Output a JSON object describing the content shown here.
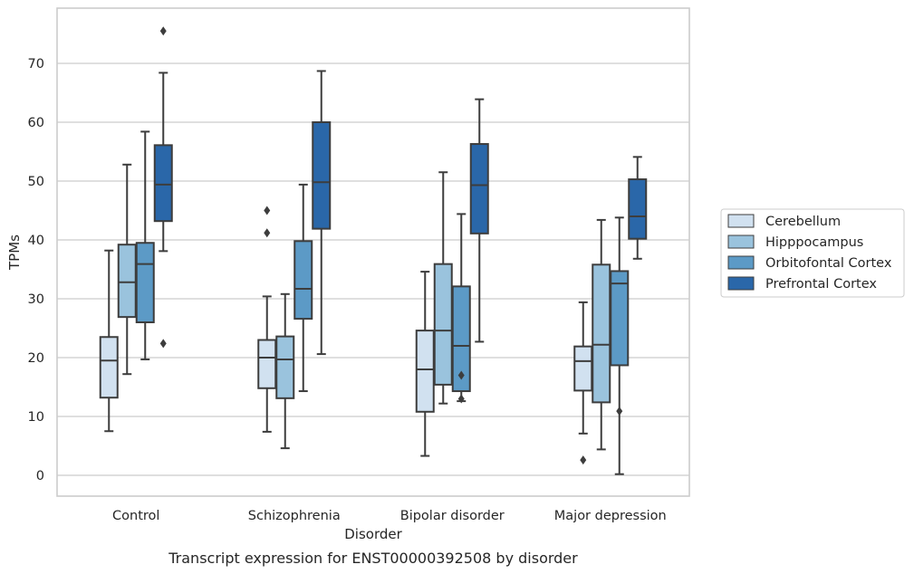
{
  "chart_data": {
    "type": "box",
    "title": "",
    "caption": "Transcript expression for ENST00000392508 by disorder",
    "xlabel": "Disorder",
    "ylabel": "TPMs",
    "ylim": [
      -3.5,
      79.5
    ],
    "yticks": [
      0,
      10,
      20,
      30,
      40,
      50,
      60,
      70
    ],
    "grid": "horizontal",
    "legend_position": "right",
    "categories": [
      "Control",
      "Schizophrenia",
      "Bipolar disorder",
      "Major depression"
    ],
    "series": [
      {
        "name": "Cerebellum",
        "color": "#d1e1f0",
        "boxes": [
          {
            "whislo": 7.5,
            "q1": 13.2,
            "med": 19.5,
            "q3": 23.5,
            "whishi": 38.2,
            "fliers": []
          },
          {
            "whislo": 7.4,
            "q1": 14.8,
            "med": 20.0,
            "q3": 23.0,
            "whishi": 30.4,
            "fliers": [
              45.0,
              41.2
            ]
          },
          {
            "whislo": 3.3,
            "q1": 10.8,
            "med": 18.0,
            "q3": 24.6,
            "whishi": 34.6,
            "fliers": []
          },
          {
            "whislo": 7.1,
            "q1": 14.4,
            "med": 19.4,
            "q3": 21.9,
            "whishi": 29.4,
            "fliers": [
              2.6
            ]
          }
        ]
      },
      {
        "name": "Hipppocampus",
        "color": "#9ac3dd",
        "boxes": [
          {
            "whislo": 17.2,
            "q1": 26.9,
            "med": 32.8,
            "q3": 39.2,
            "whishi": 52.8,
            "fliers": []
          },
          {
            "whislo": 4.6,
            "q1": 13.1,
            "med": 19.7,
            "q3": 23.6,
            "whishi": 30.8,
            "fliers": []
          },
          {
            "whislo": 12.2,
            "q1": 15.4,
            "med": 24.6,
            "q3": 35.9,
            "whishi": 51.5,
            "fliers": []
          },
          {
            "whislo": 4.4,
            "q1": 12.4,
            "med": 22.2,
            "q3": 35.8,
            "whishi": 43.4,
            "fliers": []
          }
        ]
      },
      {
        "name": "Orbitofontal Cortex",
        "color": "#5c9ac6",
        "boxes": [
          {
            "whislo": 19.7,
            "q1": 26.0,
            "med": 35.9,
            "q3": 39.5,
            "whishi": 58.4,
            "fliers": []
          },
          {
            "whislo": 14.3,
            "q1": 26.6,
            "med": 31.7,
            "q3": 39.8,
            "whishi": 49.4,
            "fliers": []
          },
          {
            "whislo": 12.6,
            "q1": 14.3,
            "med": 22.0,
            "q3": 32.1,
            "whishi": 44.4,
            "fliers": [
              17.0,
              13.0
            ]
          },
          {
            "whislo": 0.2,
            "q1": 18.7,
            "med": 32.6,
            "q3": 34.7,
            "whishi": 43.8,
            "fliers": [
              10.9
            ]
          }
        ]
      },
      {
        "name": "Prefrontal Cortex",
        "color": "#2a67a9",
        "boxes": [
          {
            "whislo": 38.1,
            "q1": 43.2,
            "med": 49.4,
            "q3": 56.1,
            "whishi": 68.4,
            "fliers": [
              75.5,
              22.4
            ]
          },
          {
            "whislo": 20.6,
            "q1": 41.9,
            "med": 49.8,
            "q3": 60.0,
            "whishi": 68.7,
            "fliers": []
          },
          {
            "whislo": 22.7,
            "q1": 41.1,
            "med": 49.3,
            "q3": 56.3,
            "whishi": 63.9,
            "fliers": []
          },
          {
            "whislo": 36.8,
            "q1": 40.2,
            "med": 44.0,
            "q3": 50.3,
            "whishi": 54.1,
            "fliers": []
          }
        ]
      }
    ]
  }
}
